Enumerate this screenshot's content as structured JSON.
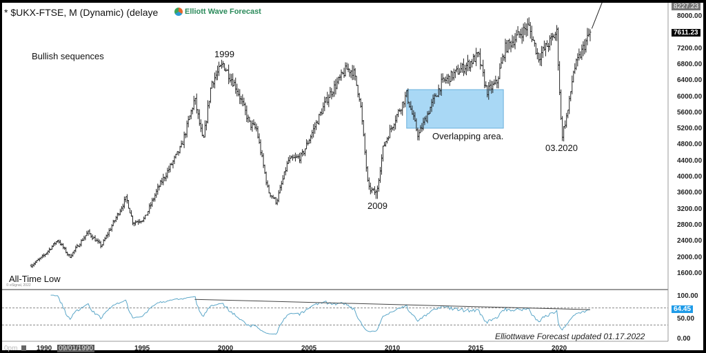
{
  "header": {
    "title": "* $UKX-FTSE, M (Dynamic) (delaye",
    "logo_text": "Elliott Wave Forecast"
  },
  "annotations": {
    "bullish": "Bullish sequences",
    "peak_1999": "1999",
    "low_2009": "2009",
    "overlap": "Overlapping area.",
    "low_2020": "03.2020",
    "all_time_low": "All-Time Low",
    "copyright": "© eSignal, 2022",
    "footer": "Elliottwave Forecast  updated 01.17.2022"
  },
  "price_axis": {
    "labels": [
      "8000.00",
      "7200.00",
      "6800.00",
      "6400.00",
      "6000.00",
      "5600.00",
      "5200.00",
      "4800.00",
      "4400.00",
      "4000.00",
      "3600.00",
      "3200.00",
      "2800.00",
      "2400.00",
      "2000.00",
      "1600.00"
    ],
    "high_tag": "8227.23",
    "last_tag": "7611.23"
  },
  "rsi_axis": {
    "labels": [
      "100.00",
      "50.00",
      "0.00"
    ],
    "last_tag": "64.45",
    "levels": [
      70,
      30
    ]
  },
  "x_axis": {
    "labels": [
      "1995",
      "2000",
      "2005",
      "2010",
      "2015",
      "2020"
    ],
    "partial_label": "1990",
    "cursor_date": "09/01/1990",
    "time_label": "0pm"
  },
  "colors": {
    "bars": "#222222",
    "rsi": "#5aa6c8",
    "box": "#a9d8f5",
    "rsi_tag": "#1e9be8",
    "last_tag": "#000000"
  },
  "chart_data": {
    "type": "ohlc-bar",
    "title": "",
    "ylim": [
      1400,
      8227
    ],
    "xlim": [
      1988,
      2023
    ],
    "anchors": [
      [
        1988.4,
        1800
      ],
      [
        1989.1,
        2025
      ],
      [
        1990.0,
        2440
      ],
      [
        1990.7,
        2010
      ],
      [
        1991.8,
        2630
      ],
      [
        1992.6,
        2285
      ],
      [
        1994.1,
        3485
      ],
      [
        1994.5,
        2865
      ],
      [
        1995.2,
        2970
      ],
      [
        1996.0,
        3725
      ],
      [
        1997.4,
        4755
      ],
      [
        1998.2,
        5955
      ],
      [
        1998.7,
        4860
      ],
      [
        1999.2,
        6350
      ],
      [
        1999.9,
        6815
      ],
      [
        2000.7,
        6230
      ],
      [
        2001.5,
        5320
      ],
      [
        2001.9,
        5200
      ],
      [
        2002.6,
        3655
      ],
      [
        2003.1,
        3380
      ],
      [
        2003.8,
        4410
      ],
      [
        2004.6,
        4515
      ],
      [
        2006.2,
        6010
      ],
      [
        2007.3,
        6695
      ],
      [
        2007.7,
        6640
      ],
      [
        2008.1,
        5955
      ],
      [
        2008.6,
        3725
      ],
      [
        2009.1,
        3605
      ],
      [
        2009.5,
        4755
      ],
      [
        2010.2,
        5440
      ],
      [
        2010.9,
        6060
      ],
      [
        2011.6,
        5030
      ],
      [
        2012.3,
        5720
      ],
      [
        2013.0,
        6350
      ],
      [
        2014.6,
        6815
      ],
      [
        2015.2,
        7040
      ],
      [
        2015.7,
        6130
      ],
      [
        2016.3,
        6350
      ],
      [
        2016.8,
        7210
      ],
      [
        2018.2,
        7775
      ],
      [
        2018.8,
        6985
      ],
      [
        2019.9,
        7605
      ],
      [
        2020.2,
        5000
      ],
      [
        2020.6,
        5720
      ],
      [
        2020.9,
        6645
      ],
      [
        2021.9,
        7611
      ]
    ],
    "overlap_box": {
      "x": [
        2010.9,
        2016.7
      ],
      "y": [
        5220,
        6180
      ]
    },
    "projection_line": [
      [
        2022.0,
        7700
      ],
      [
        2022.9,
        8650
      ]
    ],
    "rsi": {
      "ylim": [
        0,
        100
      ],
      "last": 64.45
    }
  }
}
